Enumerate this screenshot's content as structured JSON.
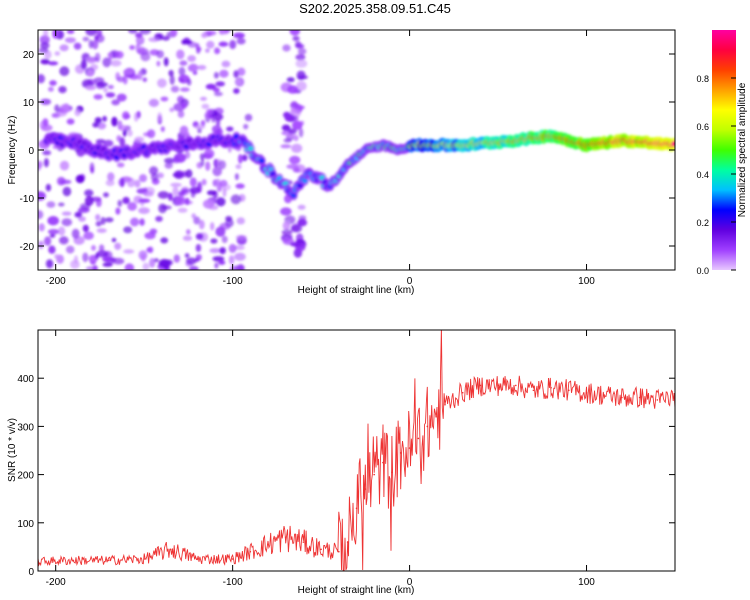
{
  "title": "S202.2025.358.09.51.C45",
  "chart_data": [
    {
      "type": "heatmap",
      "xlabel": "Height of straight line (km)",
      "ylabel": "Frequency (Hz)",
      "xlim": [
        -210,
        150
      ],
      "ylim": [
        -25,
        25
      ],
      "xticks": [
        -200,
        -100,
        0,
        100
      ],
      "yticks": [
        -20,
        -10,
        0,
        10,
        20
      ],
      "colorbar": {
        "label": "Normalized spectral amplitude",
        "range": [
          0,
          1
        ],
        "ticks": [
          0.0,
          0.2,
          0.4,
          0.6,
          0.8
        ],
        "colormap": [
          "#e8c8ff",
          "#a040ff",
          "#6000e0",
          "#0000ff",
          "#00c0ff",
          "#00ffa0",
          "#40ff00",
          "#c0ff00",
          "#ffff00",
          "#ffa000",
          "#ff4000",
          "#ff0040",
          "#ff00a0"
        ]
      },
      "ridge": [
        {
          "x": -200,
          "y": 2
        },
        {
          "x": -185,
          "y": 1
        },
        {
          "x": -170,
          "y": -1
        },
        {
          "x": -150,
          "y": 0
        },
        {
          "x": -130,
          "y": 1
        },
        {
          "x": -110,
          "y": 2
        },
        {
          "x": -95,
          "y": 2
        },
        {
          "x": -88,
          "y": -1
        },
        {
          "x": -80,
          "y": -4
        },
        {
          "x": -72,
          "y": -7
        },
        {
          "x": -65,
          "y": -9
        },
        {
          "x": -58,
          "y": -5
        },
        {
          "x": -50,
          "y": -6
        },
        {
          "x": -45,
          "y": -8
        },
        {
          "x": -35,
          "y": -3
        },
        {
          "x": -25,
          "y": 0
        },
        {
          "x": -15,
          "y": 1
        },
        {
          "x": -5,
          "y": 0
        },
        {
          "x": 0,
          "y": 1
        },
        {
          "x": 30,
          "y": 1
        },
        {
          "x": 60,
          "y": 2
        },
        {
          "x": 80,
          "y": 3
        },
        {
          "x": 90,
          "y": 2
        },
        {
          "x": 100,
          "y": 1
        },
        {
          "x": 120,
          "y": 2
        },
        {
          "x": 150,
          "y": 1
        }
      ]
    },
    {
      "type": "line",
      "xlabel": "Height of straight line (km)",
      "ylabel": "SNR (10 * v/v)",
      "xlim": [
        -210,
        150
      ],
      "ylim": [
        0,
        500
      ],
      "xticks": [
        -200,
        -100,
        0,
        100
      ],
      "yticks": [
        0,
        100,
        200,
        300,
        400
      ],
      "series": [
        {
          "name": "SNR",
          "color": "#ee3333",
          "x": [
            -210,
            -190,
            -170,
            -150,
            -135,
            -120,
            -100,
            -90,
            -80,
            -70,
            -60,
            -50,
            -40,
            -35,
            -30,
            -25,
            -20,
            -15,
            -10,
            -5,
            0,
            5,
            10,
            15,
            20,
            30,
            40,
            50,
            60,
            70,
            80,
            90,
            100,
            110,
            120,
            130,
            140,
            150
          ],
          "values": [
            20,
            22,
            22,
            25,
            45,
            25,
            25,
            40,
            55,
            70,
            60,
            45,
            40,
            60,
            130,
            170,
            200,
            225,
            205,
            245,
            255,
            275,
            300,
            320,
            345,
            370,
            385,
            385,
            385,
            375,
            380,
            375,
            370,
            365,
            360,
            360,
            355,
            360
          ]
        }
      ]
    }
  ]
}
